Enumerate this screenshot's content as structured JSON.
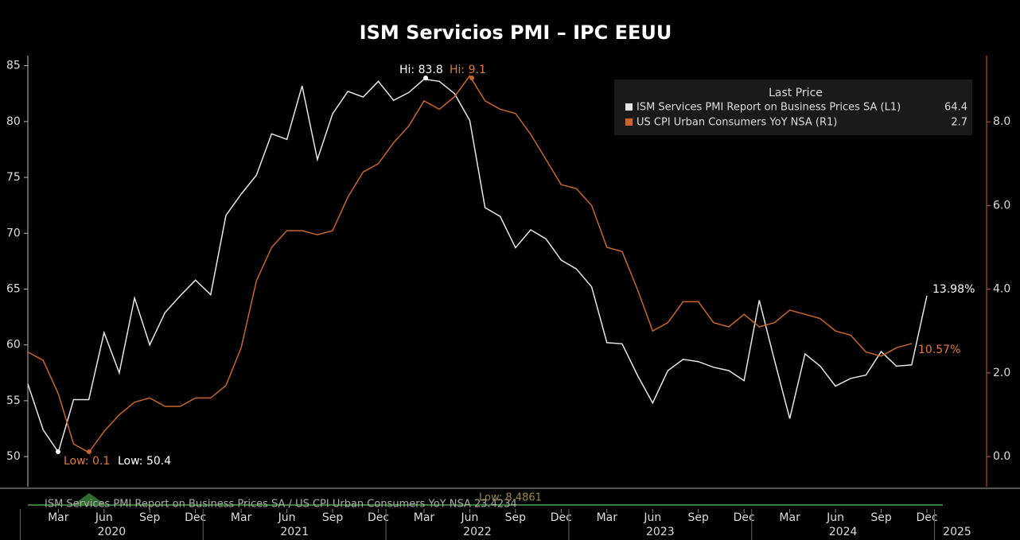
{
  "chart_data": {
    "type": "line",
    "title": "ISM Servicios PMI – IPC EEUU",
    "categories": [
      null,
      null,
      "Mar",
      null,
      null,
      "Jun",
      null,
      null,
      "Sep",
      null,
      null,
      "Dec",
      null,
      null,
      "Mar",
      null,
      null,
      "Jun",
      null,
      null,
      "Sep",
      null,
      null,
      "Dec",
      null,
      null,
      "Mar",
      null,
      null,
      "Jun",
      null,
      null,
      "Sep",
      null,
      null,
      "Dec",
      null,
      null,
      "Mar",
      null,
      null,
      "Jun",
      null,
      null,
      "Sep",
      null,
      null,
      "Dec",
      null,
      null,
      "Mar",
      null,
      null,
      "Jun",
      null,
      null,
      "Sep",
      null,
      null,
      "Dec"
    ],
    "years": [
      "2020",
      "2021",
      "2022",
      "2023",
      "2024",
      "2025"
    ],
    "series": [
      {
        "name": "ISM Services PMI Report on Business Prices SA  (L1)",
        "color": "#e6e6e6",
        "axis": "y",
        "values": [
          56.5,
          52.4,
          50.4,
          55.1,
          55.1,
          61.1,
          57.5,
          64.2,
          60.0,
          62.9,
          64.4,
          65.8,
          64.5,
          71.6,
          73.5,
          75.2,
          78.9,
          78.4,
          83.2,
          76.6,
          80.7,
          82.7,
          82.2,
          83.6,
          81.9,
          82.6,
          83.8,
          83.6,
          82.5,
          80.1,
          72.3,
          71.5,
          68.7,
          70.3,
          69.5,
          67.6,
          66.8,
          65.2,
          60.2,
          60.1,
          57.3,
          54.8,
          57.7,
          58.7,
          58.5,
          58.0,
          57.7,
          56.8,
          64.0,
          58.6,
          53.4,
          59.2,
          58.1,
          56.3,
          57.0,
          57.3,
          59.4,
          58.1,
          58.2,
          64.4
        ]
      },
      {
        "name": "US CPI Urban Consumers YoY NSA  (R1)",
        "color": "#c8662a",
        "axis": "y2",
        "values": [
          2.5,
          2.3,
          1.5,
          0.3,
          0.1,
          0.6,
          1.0,
          1.3,
          1.4,
          1.2,
          1.2,
          1.4,
          1.4,
          1.7,
          2.6,
          4.2,
          5.0,
          5.4,
          5.4,
          5.3,
          5.4,
          6.2,
          6.8,
          7.0,
          7.5,
          7.9,
          8.5,
          8.3,
          8.6,
          9.1,
          8.5,
          8.3,
          8.2,
          7.7,
          7.1,
          6.5,
          6.4,
          6.0,
          5.0,
          4.9,
          4.0,
          3.0,
          3.2,
          3.7,
          3.7,
          3.2,
          3.1,
          3.4,
          3.1,
          3.2,
          3.5,
          3.4,
          3.3,
          3.0,
          2.9,
          2.5,
          2.4,
          2.6,
          2.7,
          null
        ]
      }
    ],
    "legend_title": "Last Price",
    "legend_values": [
      "64.4",
      "2.7"
    ],
    "ylim": [
      47.3,
      85.9
    ],
    "yticks": [
      50,
      55,
      60,
      65,
      70,
      75,
      80,
      85
    ],
    "y2lim": [
      -0.72,
      9.58
    ],
    "y2ticks": [
      {
        "value": 0,
        "label": "0.0"
      },
      {
        "value": 2,
        "label": "2.0"
      },
      {
        "value": 4,
        "label": "4.0"
      },
      {
        "value": 6,
        "label": "6.0"
      },
      {
        "value": 8,
        "label": "8.0"
      }
    ],
    "annotations": [
      "Hi: 83.8",
      "Hi: 9.1",
      "Low: 0.1",
      "Low: 50.4",
      "13.98%",
      "10.57%"
    ],
    "lower_panel": {
      "label": "ISM Services PMI Report on Business Prices SA / US CPI Urban Consumers YoY NSA 23.4234",
      "low_label": "Low: 8.4861"
    }
  }
}
